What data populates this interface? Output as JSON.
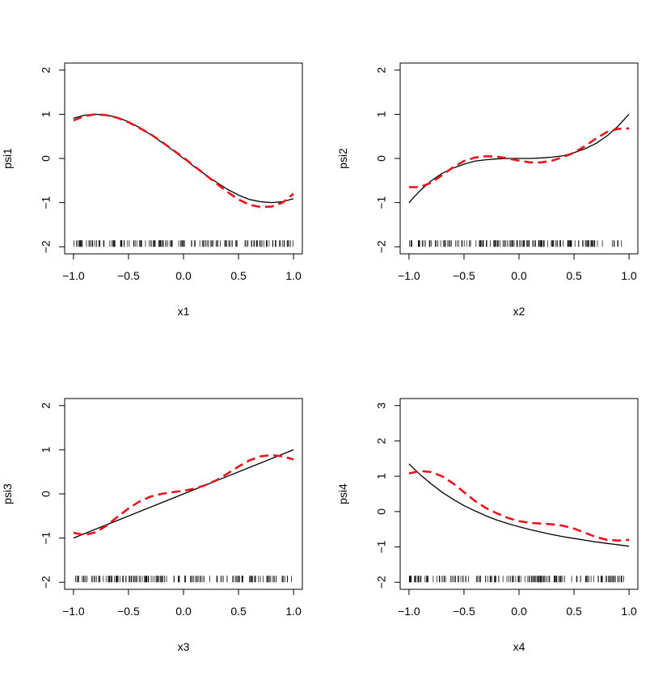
{
  "chart_data": [
    {
      "type": "line",
      "xlabel": "x1",
      "ylabel": "psi1",
      "xlim": [
        -1.0,
        1.0
      ],
      "ylim": [
        -2,
        2
      ],
      "xticks": [
        "-1.0",
        "-0.5",
        "0.0",
        "0.5",
        "1.0"
      ],
      "yticks": [
        "-2",
        "-1",
        "0",
        "1",
        "2"
      ],
      "series": [
        {
          "style": "solid",
          "color": "#000000",
          "x": [
            -1.0,
            -0.9,
            -0.8,
            -0.7,
            -0.6,
            -0.5,
            -0.4,
            -0.3,
            -0.2,
            -0.1,
            0.0,
            0.1,
            0.2,
            0.3,
            0.4,
            0.5,
            0.6,
            0.7,
            0.8,
            0.9,
            1.0
          ],
          "y": [
            0.91,
            0.98,
            1.0,
            0.98,
            0.93,
            0.83,
            0.7,
            0.54,
            0.37,
            0.19,
            0.0,
            -0.19,
            -0.37,
            -0.54,
            -0.7,
            -0.83,
            -0.93,
            -0.98,
            -1.0,
            -0.98,
            -0.91
          ]
        },
        {
          "style": "dashed",
          "color": "#e8131c",
          "x": [
            -1.0,
            -0.9,
            -0.8,
            -0.7,
            -0.6,
            -0.5,
            -0.4,
            -0.3,
            -0.2,
            -0.1,
            0.0,
            0.1,
            0.2,
            0.3,
            0.4,
            0.5,
            0.6,
            0.7,
            0.8,
            0.9,
            1.0
          ],
          "y": [
            0.86,
            0.96,
            1.0,
            0.98,
            0.92,
            0.82,
            0.69,
            0.55,
            0.38,
            0.2,
            0.02,
            -0.18,
            -0.37,
            -0.57,
            -0.76,
            -0.93,
            -1.05,
            -1.1,
            -1.09,
            -1.0,
            -0.8
          ]
        }
      ]
    },
    {
      "type": "line",
      "xlabel": "x2",
      "ylabel": "psi2",
      "xlim": [
        -1.0,
        1.0
      ],
      "ylim": [
        -2,
        2
      ],
      "xticks": [
        "-1.0",
        "-0.5",
        "0.0",
        "0.5",
        "1.0"
      ],
      "yticks": [
        "-2",
        "-1",
        "0",
        "1",
        "2"
      ],
      "series": [
        {
          "style": "solid",
          "color": "#000000",
          "x": [
            -1.0,
            -0.9,
            -0.8,
            -0.7,
            -0.6,
            -0.5,
            -0.4,
            -0.3,
            -0.2,
            -0.1,
            0.0,
            0.1,
            0.2,
            0.3,
            0.4,
            0.5,
            0.6,
            0.7,
            0.8,
            0.9,
            1.0
          ],
          "y": [
            -1.0,
            -0.73,
            -0.51,
            -0.34,
            -0.22,
            -0.13,
            -0.06,
            -0.03,
            -0.01,
            0.0,
            0.0,
            0.0,
            0.01,
            0.03,
            0.06,
            0.13,
            0.22,
            0.34,
            0.51,
            0.73,
            1.0
          ]
        },
        {
          "style": "dashed",
          "color": "#e8131c",
          "x": [
            -1.0,
            -0.9,
            -0.8,
            -0.7,
            -0.6,
            -0.5,
            -0.4,
            -0.3,
            -0.2,
            -0.1,
            0.0,
            0.1,
            0.2,
            0.3,
            0.4,
            0.5,
            0.6,
            0.7,
            0.8,
            0.9,
            1.0
          ],
          "y": [
            -0.65,
            -0.65,
            -0.55,
            -0.38,
            -0.2,
            -0.06,
            0.02,
            0.05,
            0.04,
            0.0,
            -0.05,
            -0.09,
            -0.09,
            -0.05,
            0.03,
            0.13,
            0.28,
            0.45,
            0.6,
            0.67,
            0.68
          ]
        }
      ]
    },
    {
      "type": "line",
      "xlabel": "x3",
      "ylabel": "psi3",
      "xlim": [
        -1.0,
        1.0
      ],
      "ylim": [
        -2,
        2
      ],
      "xticks": [
        "-1.0",
        "-0.5",
        "0.0",
        "0.5",
        "1.0"
      ],
      "yticks": [
        "-2",
        "-1",
        "0",
        "1",
        "2"
      ],
      "series": [
        {
          "style": "solid",
          "color": "#000000",
          "x": [
            -1.0,
            1.0
          ],
          "y": [
            -1.0,
            1.0
          ]
        },
        {
          "style": "dashed",
          "color": "#e8131c",
          "x": [
            -1.0,
            -0.9,
            -0.8,
            -0.7,
            -0.6,
            -0.5,
            -0.4,
            -0.3,
            -0.2,
            -0.1,
            0.0,
            0.1,
            0.2,
            0.3,
            0.4,
            0.5,
            0.6,
            0.7,
            0.8,
            0.9,
            1.0
          ],
          "y": [
            -0.88,
            -0.93,
            -0.87,
            -0.72,
            -0.52,
            -0.33,
            -0.17,
            -0.06,
            0.0,
            0.04,
            0.07,
            0.12,
            0.2,
            0.31,
            0.46,
            0.62,
            0.76,
            0.85,
            0.88,
            0.85,
            0.78
          ]
        }
      ]
    },
    {
      "type": "line",
      "xlabel": "x4",
      "ylabel": "psi4",
      "xlim": [
        -1.0,
        1.0
      ],
      "ylim": [
        -2,
        3
      ],
      "xticks": [
        "-1.0",
        "-0.5",
        "0.0",
        "0.5",
        "1.0"
      ],
      "yticks": [
        "-2",
        "-1",
        "0",
        "1",
        "2",
        "3"
      ],
      "series": [
        {
          "style": "solid",
          "color": "#000000",
          "x": [
            -1.0,
            -0.9,
            -0.8,
            -0.7,
            -0.6,
            -0.5,
            -0.4,
            -0.3,
            -0.2,
            -0.1,
            0.0,
            0.1,
            0.2,
            0.3,
            0.4,
            0.5,
            0.6,
            0.7,
            0.8,
            0.9,
            1.0
          ],
          "y": [
            1.35,
            1.05,
            0.79,
            0.55,
            0.35,
            0.17,
            0.02,
            -0.12,
            -0.24,
            -0.34,
            -0.43,
            -0.51,
            -0.58,
            -0.65,
            -0.71,
            -0.76,
            -0.81,
            -0.86,
            -0.9,
            -0.94,
            -0.98
          ]
        },
        {
          "style": "dashed",
          "color": "#e8131c",
          "x": [
            -1.0,
            -0.9,
            -0.8,
            -0.7,
            -0.6,
            -0.5,
            -0.4,
            -0.3,
            -0.2,
            -0.1,
            0.0,
            0.1,
            0.2,
            0.3,
            0.4,
            0.5,
            0.6,
            0.7,
            0.8,
            0.9,
            1.0
          ],
          "y": [
            1.08,
            1.15,
            1.12,
            1.0,
            0.8,
            0.55,
            0.3,
            0.1,
            -0.05,
            -0.18,
            -0.27,
            -0.32,
            -0.34,
            -0.36,
            -0.4,
            -0.48,
            -0.6,
            -0.72,
            -0.8,
            -0.82,
            -0.8
          ]
        }
      ]
    }
  ]
}
